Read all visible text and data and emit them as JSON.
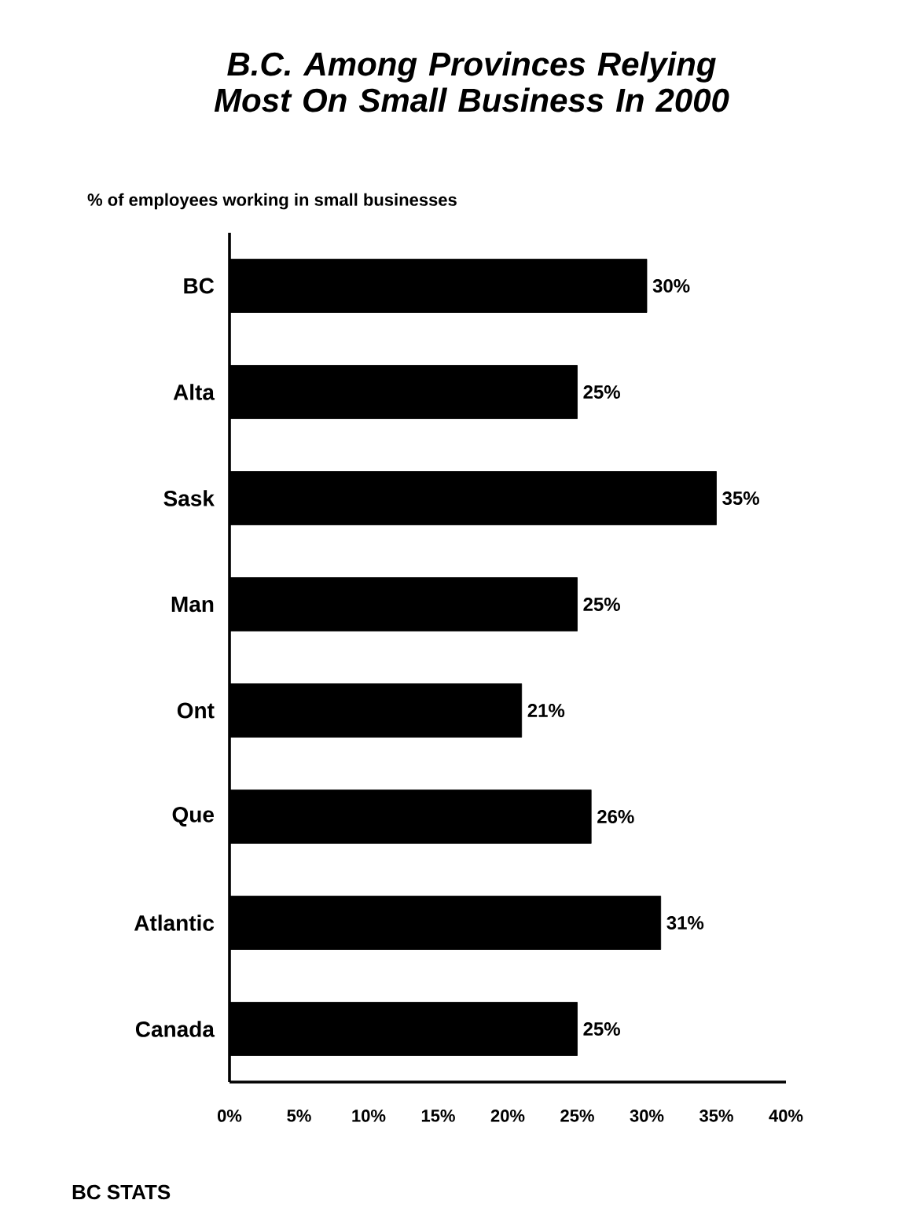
{
  "chart_data": {
    "type": "bar",
    "orientation": "horizontal",
    "title": "B.C. Among Provinces Relying Most On Small Business In 2000",
    "ylabel": "% of employees working in small businesses",
    "categories": [
      "BC",
      "Alta",
      "Sask",
      "Man",
      "Ont",
      "Que",
      "Atlantic",
      "Canada"
    ],
    "values": [
      30,
      25,
      35,
      25,
      21,
      26,
      31,
      25
    ],
    "value_labels": [
      "30%",
      "25%",
      "35%",
      "25%",
      "21%",
      "26%",
      "31%",
      "25%"
    ],
    "color": "#000000",
    "xlim": [
      0,
      40
    ],
    "xticks": [
      {
        "value": 0,
        "label": "0%"
      },
      {
        "value": 5,
        "label": "5%"
      },
      {
        "value": 10,
        "label": "10%"
      },
      {
        "value": 15,
        "label": "15%"
      },
      {
        "value": 20,
        "label": "20%"
      },
      {
        "value": 25,
        "label": "25%"
      },
      {
        "value": 30,
        "label": "30%"
      },
      {
        "value": 35,
        "label": "35%"
      },
      {
        "value": 40,
        "label": "40%"
      }
    ],
    "annotations": [
      "BC STATS"
    ]
  }
}
